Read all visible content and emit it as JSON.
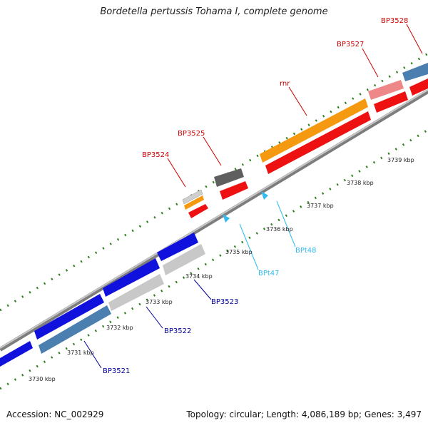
{
  "title": "Bordetella pertussis Tohama I, complete genome",
  "footer": {
    "accession": "Accession: NC_002929",
    "topology": "Topology: circular; Length: 4,086,189 bp; Genes: 3,497"
  },
  "colors": {
    "backbone": "#8f8f8f",
    "tick": "#2e7d1e",
    "red_label": "#cc0000",
    "blue_label": "#000099",
    "cyan_label": "#22aadd",
    "blue": "#1111dd",
    "grey": "#c8c8c8",
    "steel": "#4a7fb0",
    "red": "#ee1111",
    "pink": "#ee8888",
    "orange": "#f59a10",
    "dark": "#666666",
    "trna": "#33bbee"
  },
  "scale_labels": [
    "3730 kbp",
    "3731 kbp",
    "3732 kbp",
    "3733 kbp",
    "3734 kbp",
    "3735 kbp",
    "3736 kbp",
    "3737 kbp",
    "3738 kbp",
    "3739 kbp"
  ],
  "labels_top": [
    "BP3524",
    "BP3525",
    "rnr",
    "BP3527",
    "BP3528"
  ],
  "labels_bottom": [
    "BP3521",
    "BP3522",
    "BP3523",
    "BPt47",
    "BPt48"
  ]
}
